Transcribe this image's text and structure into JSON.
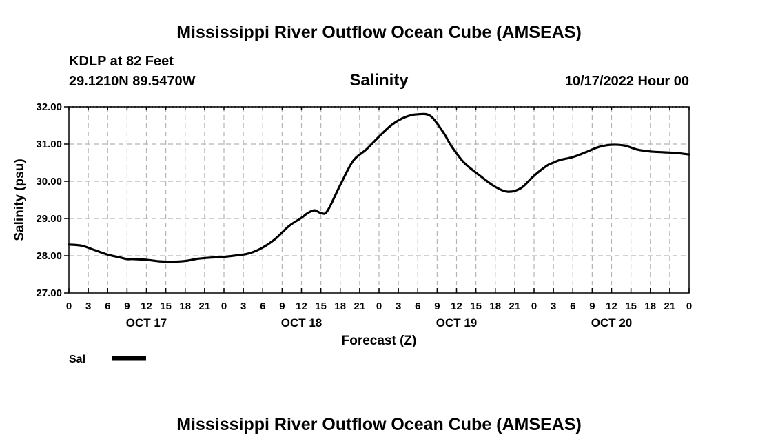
{
  "page_title": "Mississippi River Outflow Ocean Cube (AMSEAS)",
  "footer_title": "Mississippi River Outflow Ocean Cube (AMSEAS)",
  "station": {
    "line1": "KDLP at 82 Feet",
    "line2": "29.1210N  89.5470W"
  },
  "run_time": "10/17/2022 Hour 00",
  "chart_data": {
    "type": "line",
    "title": "Salinity",
    "xlabel": "Forecast (Z)",
    "ylabel": "Salinity (psu)",
    "ylim": [
      27.0,
      32.0
    ],
    "xlim_hours": [
      0,
      96
    ],
    "y_ticks": [
      "27.00",
      "28.00",
      "29.00",
      "30.00",
      "31.00",
      "32.00"
    ],
    "x_tick_labels": [
      "0",
      "3",
      "6",
      "9",
      "12",
      "15",
      "18",
      "21",
      "0",
      "3",
      "6",
      "9",
      "12",
      "15",
      "18",
      "21",
      "0",
      "3",
      "6",
      "9",
      "12",
      "15",
      "18",
      "21",
      "0",
      "3",
      "6",
      "9",
      "12",
      "15",
      "18",
      "21",
      "0"
    ],
    "day_labels": [
      {
        "label": "OCT 17",
        "hour": 12
      },
      {
        "label": "OCT 18",
        "hour": 36
      },
      {
        "label": "OCT 19",
        "hour": 60
      },
      {
        "label": "OCT 20",
        "hour": 84
      }
    ],
    "grid": true,
    "legend": [
      {
        "name": "Sal",
        "color": "#000000"
      }
    ],
    "series": [
      {
        "name": "Sal",
        "x": [
          0,
          2,
          4,
          6,
          8,
          9,
          10,
          12,
          14,
          16,
          18,
          20,
          22,
          24,
          26,
          28,
          30,
          32,
          34,
          36,
          37,
          38,
          39,
          40,
          42,
          44,
          46,
          48,
          50,
          52,
          54,
          56,
          58,
          59,
          60,
          61,
          62,
          64,
          66,
          68,
          70,
          72,
          74,
          75,
          76,
          78,
          80,
          82,
          84,
          86,
          88,
          90,
          92,
          94,
          96
        ],
        "values": [
          28.3,
          28.27,
          28.15,
          28.03,
          27.95,
          27.91,
          27.91,
          27.89,
          27.85,
          27.84,
          27.86,
          27.92,
          27.95,
          27.97,
          28.01,
          28.07,
          28.22,
          28.46,
          28.79,
          29.02,
          29.15,
          29.22,
          29.15,
          29.2,
          29.9,
          30.55,
          30.85,
          31.2,
          31.52,
          31.72,
          31.8,
          31.75,
          31.3,
          31.0,
          30.75,
          30.53,
          30.37,
          30.1,
          29.85,
          29.72,
          29.82,
          30.15,
          30.42,
          30.5,
          30.57,
          30.65,
          30.78,
          30.92,
          30.98,
          30.96,
          30.85,
          30.8,
          30.78,
          30.76,
          30.72
        ]
      }
    ]
  }
}
